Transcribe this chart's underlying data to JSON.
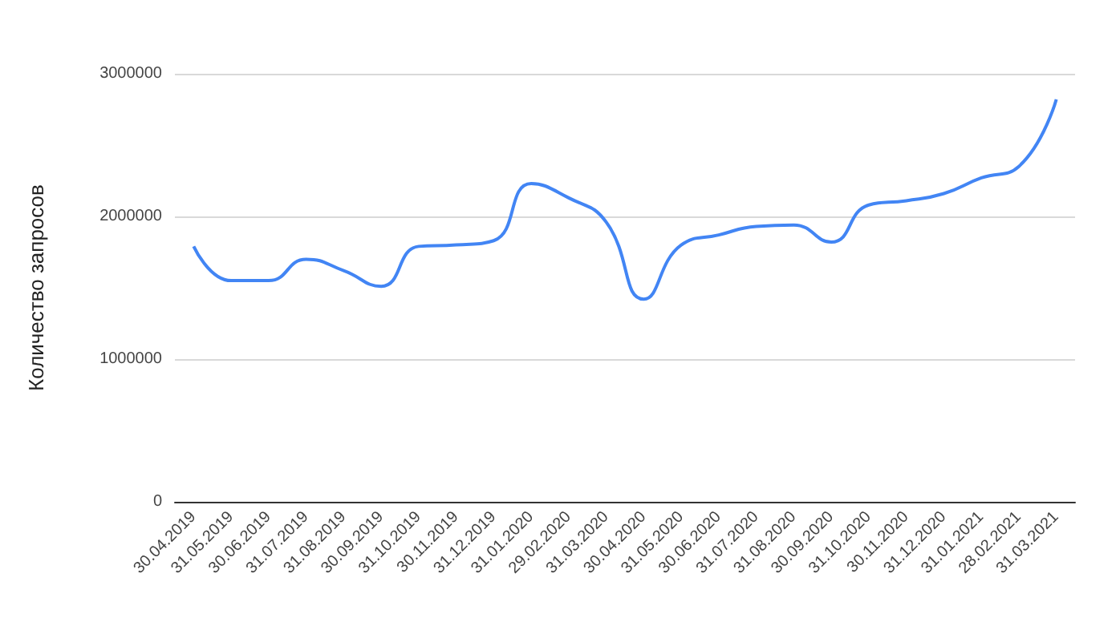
{
  "chart_data": {
    "type": "line",
    "ylabel": "Количество запросов",
    "categories": [
      "30.04.2019",
      "31.05.2019",
      "30.06.2019",
      "31.07.2019",
      "31.08.2019",
      "30.09.2019",
      "31.10.2019",
      "30.11.2019",
      "31.12.2019",
      "31.01.2020",
      "29.02.2020",
      "31.03.2020",
      "30.04.2020",
      "31.05.2020",
      "30.06.2020",
      "31.07.2020",
      "31.08.2020",
      "30.09.2020",
      "31.10.2020",
      "30.11.2020",
      "31.12.2020",
      "31.01.2021",
      "28.02.2021",
      "31.03.2021"
    ],
    "series": [
      {
        "color": "#4285f4",
        "values": [
          1790000,
          1550000,
          1550000,
          1700000,
          1620000,
          1510000,
          1790000,
          1800000,
          1830000,
          2230000,
          2130000,
          1960000,
          1420000,
          1800000,
          1870000,
          1930000,
          1940000,
          1820000,
          2080000,
          2110000,
          2160000,
          2270000,
          2350000,
          2820000
        ]
      }
    ],
    "ylim": [
      0,
      3000000
    ],
    "yticks": [
      0,
      1000000,
      2000000,
      3000000
    ],
    "grid": "y",
    "marker": "none",
    "line_style": "solid"
  }
}
